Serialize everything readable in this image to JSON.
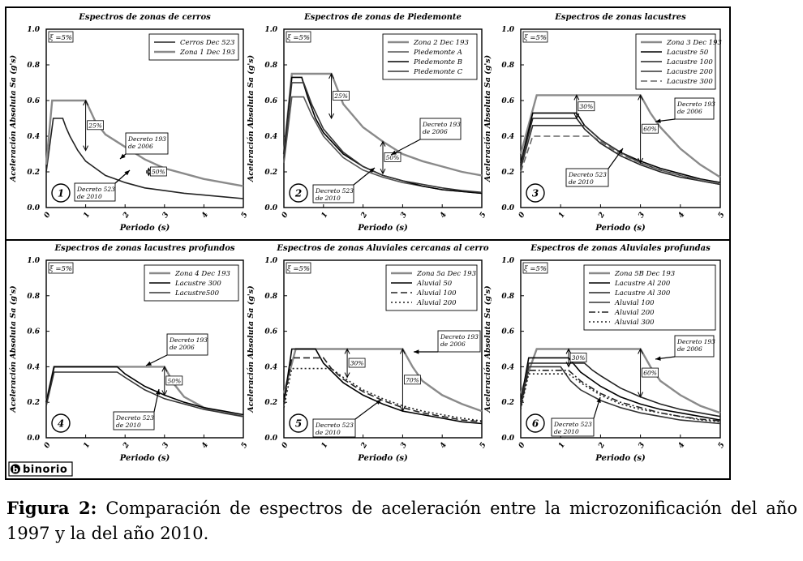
{
  "logo": {
    "mark": "b",
    "text": "binorio"
  },
  "caption": {
    "label": "Figura 2:",
    "text": "Comparación de espectros de aceleración entre la microzonificación del año 1997 y la del año 2010."
  },
  "chart_data": [
    {
      "type": "line",
      "title": "Espectros de zonas de cerros",
      "xlabel": "Periodo (s)",
      "ylabel": "Aceleración Absoluta Sa (g's)",
      "xlim": [
        0,
        5
      ],
      "ylim": [
        0,
        1.0
      ],
      "xticks": [
        "0",
        "1",
        "2",
        "3",
        "4",
        "5"
      ],
      "yticks": [
        "0.0",
        "0.2",
        "0.4",
        "0.6",
        "0.8",
        "1.0"
      ],
      "xi": "ξ =5%",
      "number": "1",
      "legend_position": "top-right",
      "series": [
        {
          "name": "Cerros  Dec 523",
          "color": "#222222",
          "x": [
            0,
            0.18,
            0.42,
            0.5,
            0.6,
            0.8,
            1,
            1.25,
            1.5,
            1.75,
            2,
            2.5,
            3,
            3.5,
            4,
            4.5,
            5
          ],
          "y": [
            0.2,
            0.5,
            0.5,
            0.45,
            0.4,
            0.32,
            0.26,
            0.22,
            0.18,
            0.16,
            0.14,
            0.11,
            0.095,
            0.08,
            0.07,
            0.06,
            0.05
          ]
        },
        {
          "name": "Zona 1 Dec 193",
          "color": "#8a8a8a",
          "x": [
            0,
            0.15,
            1,
            1.25,
            1.5,
            2,
            2.5,
            3,
            3.5,
            4,
            4.5,
            5
          ],
          "y": [
            0.24,
            0.6,
            0.6,
            0.48,
            0.41,
            0.34,
            0.27,
            0.22,
            0.19,
            0.16,
            0.14,
            0.12
          ]
        }
      ],
      "annotations": [
        "25%",
        "50%",
        "Decreto 193 de 2006",
        "Decreto 523 de 2010"
      ]
    },
    {
      "type": "line",
      "title": "Espectros de zonas de Piedemonte",
      "xlabel": "Periodo (s)",
      "ylabel": "Aceleración Absoluta Sa (g's)",
      "xlim": [
        0,
        5
      ],
      "ylim": [
        0,
        1.0
      ],
      "xticks": [
        "0",
        "1",
        "2",
        "3",
        "4",
        "5"
      ],
      "yticks": [
        "0.0",
        "0.2",
        "0.4",
        "0.6",
        "0.8",
        "1.0"
      ],
      "xi": "ξ =5%",
      "number": "2",
      "legend_position": "top-right",
      "series": [
        {
          "name": "Zona 2 Dec 193",
          "color": "#8a8a8a",
          "x": [
            0,
            0.2,
            1.2,
            1.5,
            2,
            2.5,
            3,
            3.5,
            4,
            4.5,
            5
          ],
          "y": [
            0.3,
            0.75,
            0.75,
            0.58,
            0.45,
            0.37,
            0.3,
            0.26,
            0.23,
            0.2,
            0.18
          ]
        },
        {
          "name": "Piedemonte A",
          "color": "#555555",
          "x": [
            0,
            0.2,
            0.5,
            0.7,
            1,
            1.5,
            2,
            2.5,
            3,
            3.5,
            4,
            4.5,
            5
          ],
          "y": [
            0.25,
            0.62,
            0.62,
            0.52,
            0.4,
            0.28,
            0.21,
            0.17,
            0.14,
            0.12,
            0.1,
            0.09,
            0.08
          ]
        },
        {
          "name": "Piedemonte B",
          "color": "#000000",
          "x": [
            0,
            0.2,
            0.45,
            0.6,
            0.8,
            1,
            1.5,
            2,
            2.5,
            3,
            3.5,
            4,
            4.5,
            5
          ],
          "y": [
            0.3,
            0.73,
            0.73,
            0.62,
            0.5,
            0.42,
            0.3,
            0.23,
            0.18,
            0.15,
            0.12,
            0.1,
            0.09,
            0.08
          ]
        },
        {
          "name": "Piedemonte C",
          "color": "#333333",
          "x": [
            0,
            0.2,
            0.5,
            0.7,
            1,
            1.5,
            2,
            2.5,
            3,
            3.5,
            4,
            4.5,
            5
          ],
          "y": [
            0.28,
            0.7,
            0.7,
            0.58,
            0.44,
            0.31,
            0.23,
            0.18,
            0.15,
            0.13,
            0.11,
            0.095,
            0.085
          ]
        }
      ],
      "annotations": [
        "25%",
        "50%",
        "Decreto 193 de 2006",
        "Decreto 523 de 2010"
      ]
    },
    {
      "type": "line",
      "title": "Espectros de zonas lacustres",
      "xlabel": "Periodo (s)",
      "ylabel": "Aceleración Absoluta Sa (g's)",
      "xlim": [
        0,
        5
      ],
      "ylim": [
        0,
        1.0
      ],
      "xticks": [
        "0",
        "1",
        "2",
        "3",
        "4",
        "5"
      ],
      "yticks": [
        "0.0",
        "0.2",
        "0.4",
        "0.6",
        "0.8",
        "1.0"
      ],
      "xi": "ξ =5%",
      "number": "3",
      "legend_position": "top-right",
      "series": [
        {
          "name": "Zona 3 Dec 193",
          "color": "#8a8a8a",
          "x": [
            0,
            0.4,
            3,
            3.25,
            3.5,
            4,
            4.5,
            5
          ],
          "y": [
            0.3,
            0.63,
            0.63,
            0.53,
            0.45,
            0.33,
            0.24,
            0.17
          ]
        },
        {
          "name": "Lacustre 50",
          "color": "#000000",
          "x": [
            0,
            0.3,
            1.4,
            1.6,
            2,
            2.5,
            3,
            3.5,
            4,
            4.5,
            5
          ],
          "y": [
            0.25,
            0.53,
            0.53,
            0.46,
            0.38,
            0.31,
            0.26,
            0.22,
            0.19,
            0.16,
            0.14
          ]
        },
        {
          "name": "Lacustre 100",
          "color": "#222222",
          "x": [
            0,
            0.3,
            1.4,
            1.6,
            2,
            2.5,
            3,
            3.5,
            4,
            4.5,
            5
          ],
          "y": [
            0.24,
            0.5,
            0.5,
            0.44,
            0.36,
            0.29,
            0.24,
            0.2,
            0.17,
            0.15,
            0.13
          ]
        },
        {
          "name": "Lacustre 200",
          "color": "#333333",
          "x": [
            0,
            0.3,
            1.6,
            1.8,
            2,
            2.5,
            3,
            3.5,
            4,
            4.5,
            5
          ],
          "y": [
            0.22,
            0.46,
            0.46,
            0.42,
            0.38,
            0.31,
            0.25,
            0.21,
            0.18,
            0.15,
            0.13
          ]
        },
        {
          "name": "Lacustre 300",
          "color": "#666666",
          "dash": "8,4",
          "x": [
            0,
            0.3,
            1.8,
            2,
            2.5,
            3,
            3.5,
            4,
            4.5,
            5
          ],
          "y": [
            0.2,
            0.4,
            0.4,
            0.37,
            0.3,
            0.25,
            0.21,
            0.18,
            0.155,
            0.135
          ]
        }
      ],
      "annotations": [
        "30%",
        "60%",
        "Decreto 193 de 2006",
        "Decreto 523 de 2010"
      ]
    },
    {
      "type": "line",
      "title": "Espectros de zonas lacustres profundos",
      "xlabel": "Periodo (s)",
      "ylabel": "Aceleración Absoluta Sa (g's)",
      "xlim": [
        0,
        5
      ],
      "ylim": [
        0,
        1.0
      ],
      "xticks": [
        "0",
        "1",
        "2",
        "3",
        "4",
        "5"
      ],
      "yticks": [
        "0.0",
        "0.2",
        "0.4",
        "0.6",
        "0.8",
        "1.0"
      ],
      "xi": "ξ =5%",
      "number": "4",
      "legend_position": "top-right",
      "series": [
        {
          "name": "Zona 4 Dec 193",
          "color": "#8a8a8a",
          "x": [
            0,
            0.2,
            3,
            3.25,
            3.5,
            4,
            4.5,
            5
          ],
          "y": [
            0.2,
            0.4,
            0.4,
            0.3,
            0.23,
            0.17,
            0.14,
            0.12
          ]
        },
        {
          "name": "Lacustre 300",
          "color": "#000000",
          "x": [
            0,
            0.2,
            1.8,
            2,
            2.5,
            3,
            3.5,
            4,
            4.5,
            5
          ],
          "y": [
            0.2,
            0.4,
            0.4,
            0.36,
            0.29,
            0.24,
            0.2,
            0.17,
            0.15,
            0.13
          ]
        },
        {
          "name": "Lacustre500",
          "color": "#333333",
          "x": [
            0,
            0.2,
            1.8,
            2,
            2.5,
            3,
            3.5,
            4,
            4.5,
            5
          ],
          "y": [
            0.18,
            0.37,
            0.37,
            0.34,
            0.27,
            0.22,
            0.19,
            0.16,
            0.14,
            0.12
          ]
        }
      ],
      "annotations": [
        "50%",
        "Decreto 193 de 2006",
        "Decreto 523 de 2010"
      ]
    },
    {
      "type": "line",
      "title": "Espectros de zonas Aluviales cercanas al cerro",
      "xlabel": "Periodo (s)",
      "ylabel": "Aceleración Absoluta Sa (g's)",
      "xlim": [
        0,
        5
      ],
      "ylim": [
        0,
        1.0
      ],
      "xticks": [
        "0",
        "1",
        "2",
        "3",
        "4",
        "5"
      ],
      "yticks": [
        "0.0",
        "0.2",
        "0.4",
        "0.6",
        "0.8",
        "1.0"
      ],
      "xi": "ξ =5%",
      "number": "5",
      "legend_position": "top-right",
      "series": [
        {
          "name": "Zona 5a Dec 193",
          "color": "#8a8a8a",
          "x": [
            0,
            0.3,
            3,
            3.25,
            3.5,
            4,
            4.5,
            5
          ],
          "y": [
            0.25,
            0.5,
            0.5,
            0.4,
            0.32,
            0.24,
            0.19,
            0.15
          ]
        },
        {
          "name": "Aluvial 50",
          "color": "#000000",
          "x": [
            0,
            0.2,
            0.8,
            1,
            1.5,
            2,
            2.5,
            3,
            3.5,
            4,
            4.5,
            5
          ],
          "y": [
            0.2,
            0.5,
            0.5,
            0.42,
            0.31,
            0.24,
            0.19,
            0.15,
            0.13,
            0.11,
            0.09,
            0.08
          ]
        },
        {
          "name": "Aluvial 100",
          "color": "#222222",
          "dash": "8,4",
          "x": [
            0,
            0.2,
            1,
            1.2,
            1.5,
            2,
            2.5,
            3,
            3.5,
            4,
            4.5,
            5
          ],
          "y": [
            0.19,
            0.45,
            0.45,
            0.39,
            0.33,
            0.26,
            0.21,
            0.17,
            0.14,
            0.12,
            0.1,
            0.09
          ]
        },
        {
          "name": "Aluvial 200",
          "color": "#222222",
          "dash": "2,3",
          "x": [
            0,
            0.2,
            1.2,
            1.5,
            2,
            2.5,
            3,
            3.5,
            4,
            4.5,
            5
          ],
          "y": [
            0.17,
            0.39,
            0.39,
            0.34,
            0.27,
            0.22,
            0.18,
            0.15,
            0.13,
            0.11,
            0.095
          ]
        }
      ],
      "annotations": [
        "30%",
        "70%",
        "Decreto 193 de 2006",
        "Decreto 523 de 2010"
      ]
    },
    {
      "type": "line",
      "title": "Espectros de zonas Aluviales profundas",
      "xlabel": "Periodo (s)",
      "ylabel": "Aceleración Absoluta Sa (g's)",
      "xlim": [
        0,
        5
      ],
      "ylim": [
        0,
        1.0
      ],
      "xticks": [
        "0",
        "1",
        "2",
        "3",
        "4",
        "5"
      ],
      "yticks": [
        "0.0",
        "0.2",
        "0.4",
        "0.6",
        "0.8",
        "1.0"
      ],
      "xi": "ξ =5%",
      "number": "6",
      "legend_position": "top-right",
      "series": [
        {
          "name": "Zona 5B Dec 193",
          "color": "#8a8a8a",
          "x": [
            0,
            0.4,
            3,
            3.25,
            3.5,
            4,
            4.5,
            5
          ],
          "y": [
            0.25,
            0.5,
            0.5,
            0.4,
            0.32,
            0.24,
            0.18,
            0.14
          ]
        },
        {
          "name": "Lacustre Al 200",
          "color": "#000000",
          "x": [
            0,
            0.2,
            1.2,
            1.5,
            2,
            2.5,
            3,
            3.5,
            4,
            4.5,
            5
          ],
          "y": [
            0.2,
            0.45,
            0.45,
            0.37,
            0.29,
            0.23,
            0.19,
            0.16,
            0.14,
            0.12,
            0.1
          ]
        },
        {
          "name": "Lacustre Al 300",
          "color": "#222222",
          "x": [
            0,
            0.2,
            1.6,
            1.8,
            2,
            2.5,
            3,
            3.5,
            4,
            4.5,
            5
          ],
          "y": [
            0.19,
            0.42,
            0.42,
            0.38,
            0.35,
            0.28,
            0.23,
            0.19,
            0.16,
            0.14,
            0.12
          ]
        },
        {
          "name": "Aluvial 100",
          "color": "#333333",
          "x": [
            0,
            0.2,
            1,
            1.25,
            1.5,
            2,
            2.5,
            3,
            3.5,
            4,
            4.5,
            5
          ],
          "y": [
            0.18,
            0.4,
            0.4,
            0.32,
            0.27,
            0.21,
            0.17,
            0.14,
            0.12,
            0.1,
            0.09,
            0.08
          ]
        },
        {
          "name": "Aluvial 200",
          "color": "#222222",
          "dash": "8,3,2,3",
          "x": [
            0,
            0.2,
            1.2,
            1.5,
            2,
            2.5,
            3,
            3.5,
            4,
            4.5,
            5
          ],
          "y": [
            0.17,
            0.38,
            0.38,
            0.32,
            0.25,
            0.2,
            0.17,
            0.14,
            0.12,
            0.105,
            0.095
          ]
        },
        {
          "name": "Aluvial 300",
          "color": "#222222",
          "dash": "2,3",
          "x": [
            0,
            0.2,
            1.2,
            1.5,
            2,
            2.5,
            3,
            3.5,
            4,
            4.5,
            5
          ],
          "y": [
            0.16,
            0.36,
            0.36,
            0.31,
            0.24,
            0.19,
            0.16,
            0.14,
            0.12,
            0.1,
            0.09
          ]
        }
      ],
      "annotations": [
        "30%",
        "60%",
        "Decreto 193 de 2006",
        "Decreto 523 de 2010"
      ]
    }
  ]
}
